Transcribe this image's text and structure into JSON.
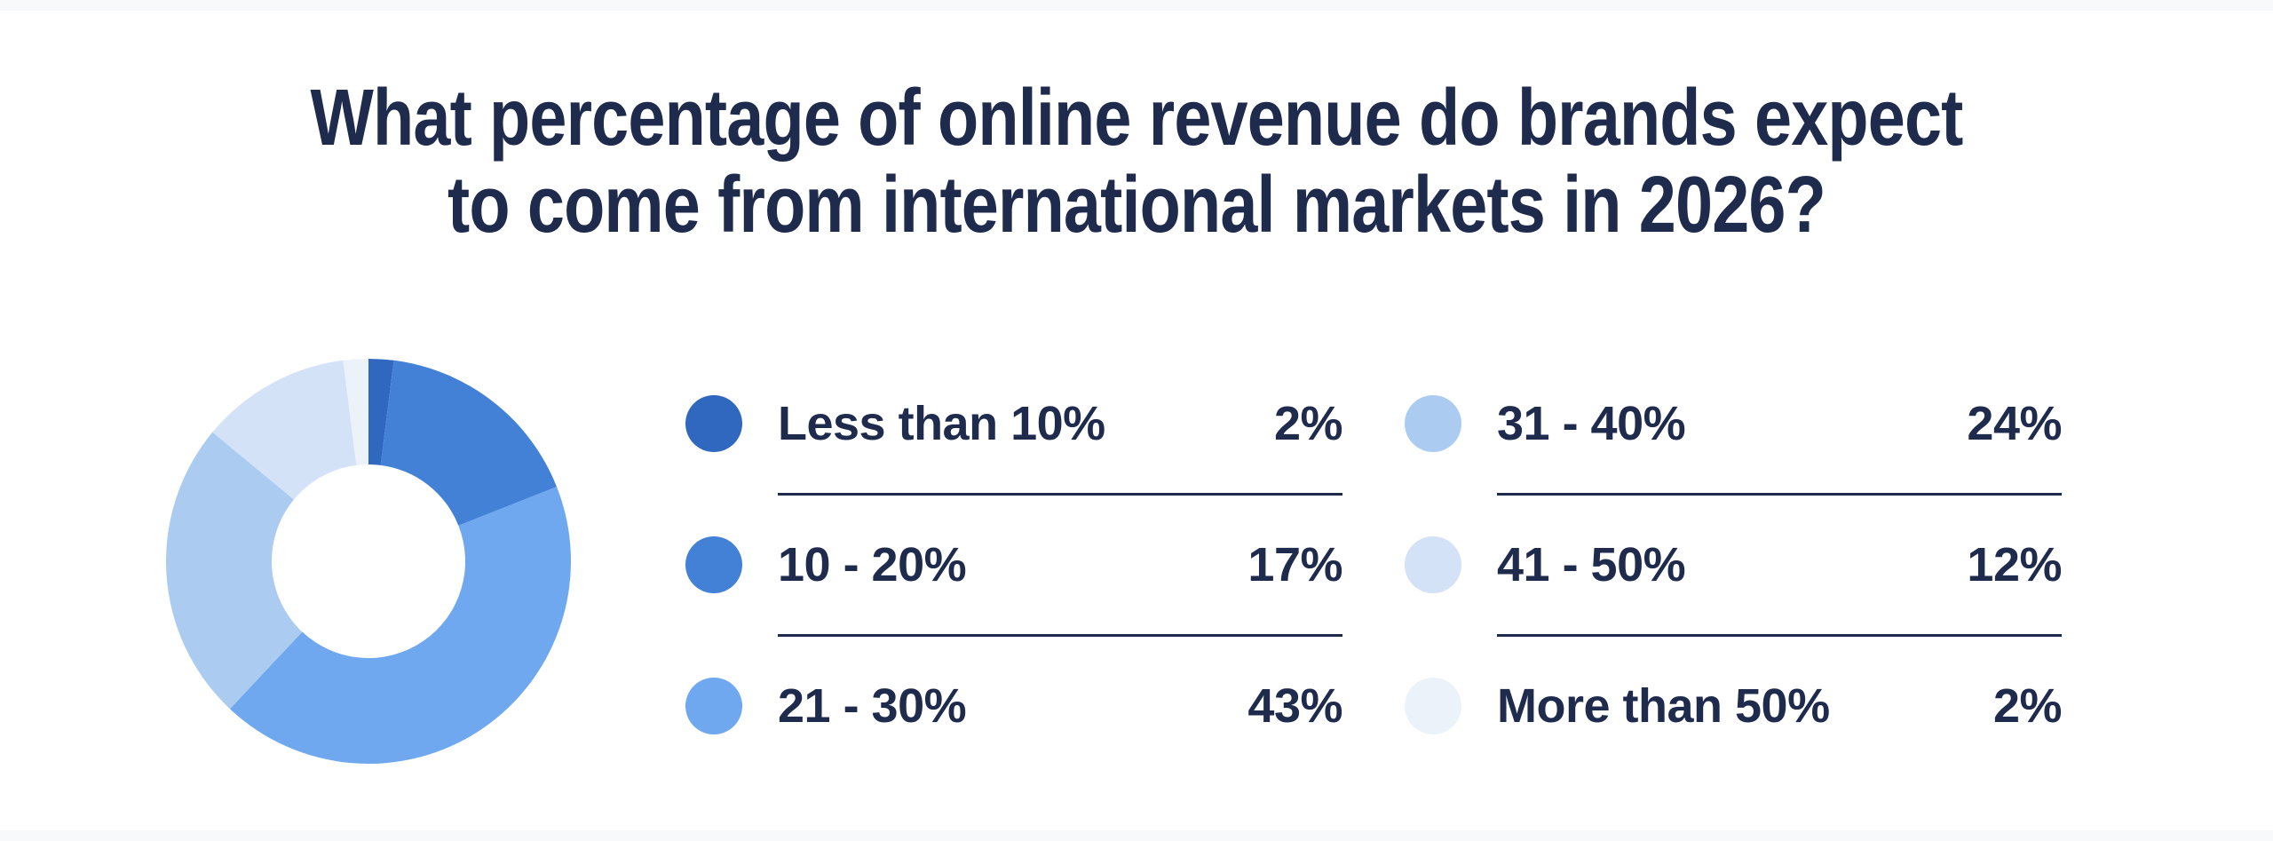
{
  "theme": {
    "text_color": "#1f2b4d",
    "divider_color": "#1f2b4d",
    "background": "#ffffff",
    "edge_strip_color": "#f8f9fa"
  },
  "title": {
    "line1": "What percentage of online revenue do brands expect",
    "line2": "to come from international markets in 2026?"
  },
  "chart_data": {
    "type": "pie",
    "subtype": "donut",
    "title": "What percentage of online revenue do brands expect to come from international markets in 2026?",
    "start_angle_deg": 0,
    "direction": "clockwise",
    "inner_radius_ratio": 0.48,
    "categories": [
      "Less than 10%",
      "10 - 20%",
      "21 - 30%",
      "31 - 40%",
      "41 - 50%",
      "More than 50%"
    ],
    "values": [
      2,
      17,
      43,
      24,
      12,
      2
    ],
    "value_labels": [
      "2%",
      "17%",
      "43%",
      "24%",
      "12%",
      "2%"
    ],
    "colors": [
      "#3168bf",
      "#4281d6",
      "#6fa8ef",
      "#abccf0",
      "#d3e2f6",
      "#ecf2fa"
    ],
    "legend_position": "right",
    "legend_columns": 2,
    "grid": false
  }
}
